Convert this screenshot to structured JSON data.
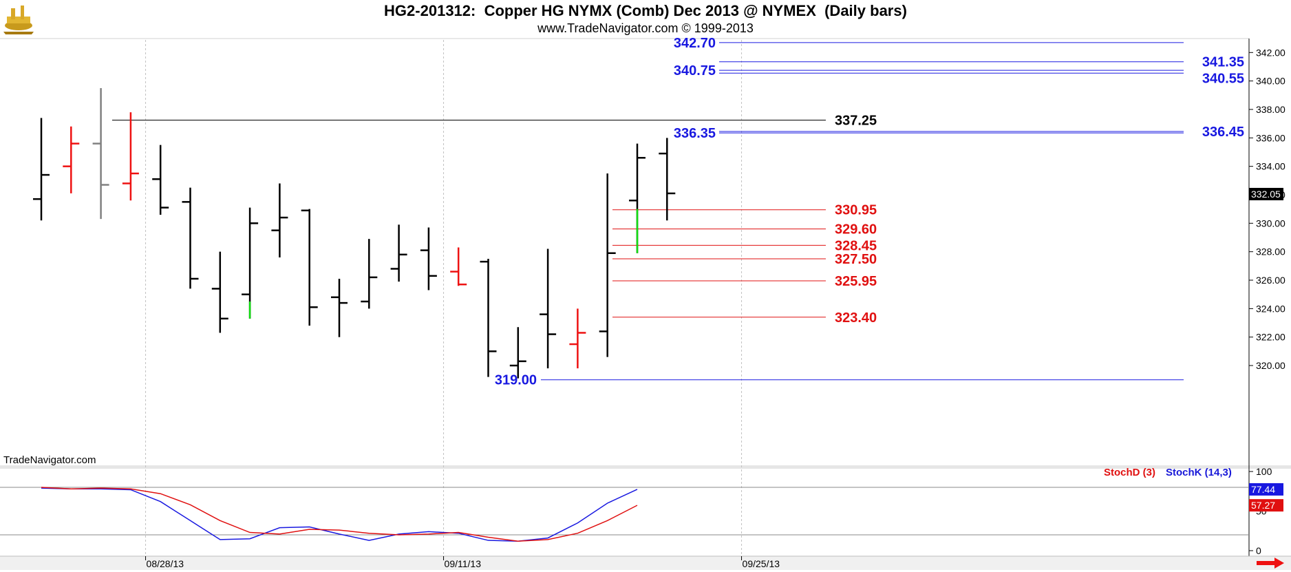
{
  "header": {
    "title": "HG2-201312:  Copper HG NYMX (Comb) Dec 2013 @ NYMEX  (Daily bars)",
    "subtitle": "www.TradeNavigator.com © 1999-2013"
  },
  "watermark": "TradeNavigator.com",
  "colors": {
    "bar_black": "#000000",
    "bar_red": "#ee1111",
    "bar_gray": "#808080",
    "bar_green": "#11dd11",
    "level_blue": "#1818e0",
    "level_red": "#e01010",
    "stoch_k": "#1818e0",
    "stoch_d": "#e01010"
  },
  "chart_data": [
    {
      "type": "ohlc",
      "title": "HG2-201312:  Copper HG NYMX (Comb) Dec 2013 @ NYMEX  (Daily bars)",
      "ylim": [
        318.5,
        343.5
      ],
      "y_ticks": [
        "320.00",
        "322.00",
        "324.00",
        "326.00",
        "328.00",
        "330.00",
        "332.00",
        "334.00",
        "336.00",
        "338.00",
        "340.00",
        "342.00"
      ],
      "x_ticks": [
        {
          "label": "08/28/13",
          "index": 3.5
        },
        {
          "label": "09/11/13",
          "index": 13.5
        },
        {
          "label": "09/25/13",
          "index": 23.5
        }
      ],
      "last_price": "332.05",
      "bars": [
        {
          "o": 331.7,
          "h": 337.4,
          "l": 330.2,
          "c": 333.4,
          "color": "black"
        },
        {
          "o": 334.0,
          "h": 336.8,
          "l": 332.1,
          "c": 335.6,
          "color": "red"
        },
        {
          "o": 335.6,
          "h": 339.5,
          "l": 330.3,
          "c": 332.7,
          "color": "gray"
        },
        {
          "o": 332.8,
          "h": 337.8,
          "l": 331.6,
          "c": 333.5,
          "color": "red"
        },
        {
          "o": 333.1,
          "h": 335.5,
          "l": 330.6,
          "c": 331.1,
          "color": "black"
        },
        {
          "o": 331.5,
          "h": 332.5,
          "l": 325.4,
          "c": 326.1,
          "color": "black"
        },
        {
          "o": 325.4,
          "h": 328.0,
          "l": 322.3,
          "c": 323.3,
          "color": "black"
        },
        {
          "o": 325.0,
          "h": 331.1,
          "l": 323.3,
          "c": 330.0,
          "color": "black",
          "low_tail": "green",
          "low_tail_top": 324.5
        },
        {
          "o": 329.5,
          "h": 332.8,
          "l": 327.6,
          "c": 330.4,
          "color": "black"
        },
        {
          "o": 330.9,
          "h": 331.0,
          "l": 322.8,
          "c": 324.1,
          "color": "black"
        },
        {
          "o": 324.8,
          "h": 326.1,
          "l": 322.0,
          "c": 324.4,
          "color": "black"
        },
        {
          "o": 324.5,
          "h": 328.9,
          "l": 324.0,
          "c": 326.2,
          "color": "black"
        },
        {
          "o": 326.8,
          "h": 329.9,
          "l": 325.9,
          "c": 327.8,
          "color": "black"
        },
        {
          "o": 328.1,
          "h": 329.7,
          "l": 325.3,
          "c": 326.3,
          "color": "black"
        },
        {
          "o": 326.6,
          "h": 328.3,
          "l": 325.6,
          "c": 325.7,
          "color": "red"
        },
        {
          "o": 327.3,
          "h": 327.5,
          "l": 319.2,
          "c": 321.0,
          "color": "black"
        },
        {
          "o": 320.0,
          "h": 322.7,
          "l": 319.1,
          "c": 320.3,
          "color": "black"
        },
        {
          "o": 323.6,
          "h": 328.2,
          "l": 319.8,
          "c": 322.2,
          "color": "black"
        },
        {
          "o": 321.5,
          "h": 324.0,
          "l": 319.8,
          "c": 322.3,
          "color": "red"
        },
        {
          "o": 322.4,
          "h": 333.5,
          "l": 320.6,
          "c": 327.9,
          "color": "black"
        },
        {
          "o": 331.6,
          "h": 335.6,
          "l": 327.9,
          "c": 334.6,
          "color": "black",
          "low_tail": "green",
          "low_tail_top": 331.0
        },
        {
          "o": 334.9,
          "h": 336.0,
          "l": 330.2,
          "c": 332.1,
          "color": "black"
        }
      ],
      "levels": [
        {
          "value": 342.7,
          "label": "342.70",
          "color": "blue",
          "side": "left"
        },
        {
          "value": 341.35,
          "label": "341.35",
          "color": "blue",
          "side": "right"
        },
        {
          "value": 340.75,
          "label": "340.75",
          "color": "blue",
          "side": "left"
        },
        {
          "value": 340.55,
          "label": "340.55",
          "color": "blue",
          "side": "right"
        },
        {
          "value": 337.25,
          "label": "337.25",
          "color": "black",
          "side": "inline"
        },
        {
          "value": 336.45,
          "label": "336.45",
          "color": "blue",
          "side": "right"
        },
        {
          "value": 336.35,
          "label": "336.35",
          "color": "blue",
          "side": "left"
        },
        {
          "value": 330.95,
          "label": "330.95",
          "color": "red",
          "side": "inline"
        },
        {
          "value": 329.6,
          "label": "329.60",
          "color": "red",
          "side": "inline"
        },
        {
          "value": 328.45,
          "label": "328.45",
          "color": "red",
          "side": "inline"
        },
        {
          "value": 327.5,
          "label": "327.50",
          "color": "red",
          "side": "inline"
        },
        {
          "value": 325.95,
          "label": "325.95",
          "color": "red",
          "side": "inline"
        },
        {
          "value": 323.4,
          "label": "323.40",
          "color": "red",
          "side": "inline"
        },
        {
          "value": 319.0,
          "label": "319.00",
          "color": "blue",
          "side": "left"
        }
      ]
    },
    {
      "type": "line",
      "ylim": [
        0,
        100
      ],
      "y_ticks": [
        "0",
        "50",
        "100"
      ],
      "ref_lines": [
        20,
        80
      ],
      "series": [
        {
          "name": "StochK (14,3)",
          "color": "blue",
          "last": "77.44",
          "values": [
            79,
            78,
            78,
            77,
            62,
            38,
            14,
            15,
            29,
            30,
            21,
            13,
            21,
            24,
            22,
            13,
            12,
            16,
            35,
            60,
            77.44
          ]
        },
        {
          "name": "StochD (3)",
          "color": "red",
          "last": "57.27",
          "values": [
            80,
            78,
            79,
            78,
            72,
            58,
            38,
            23,
            21,
            27,
            26,
            22,
            20,
            21,
            23,
            17,
            12,
            14,
            22,
            38,
            57.27
          ]
        }
      ]
    }
  ]
}
